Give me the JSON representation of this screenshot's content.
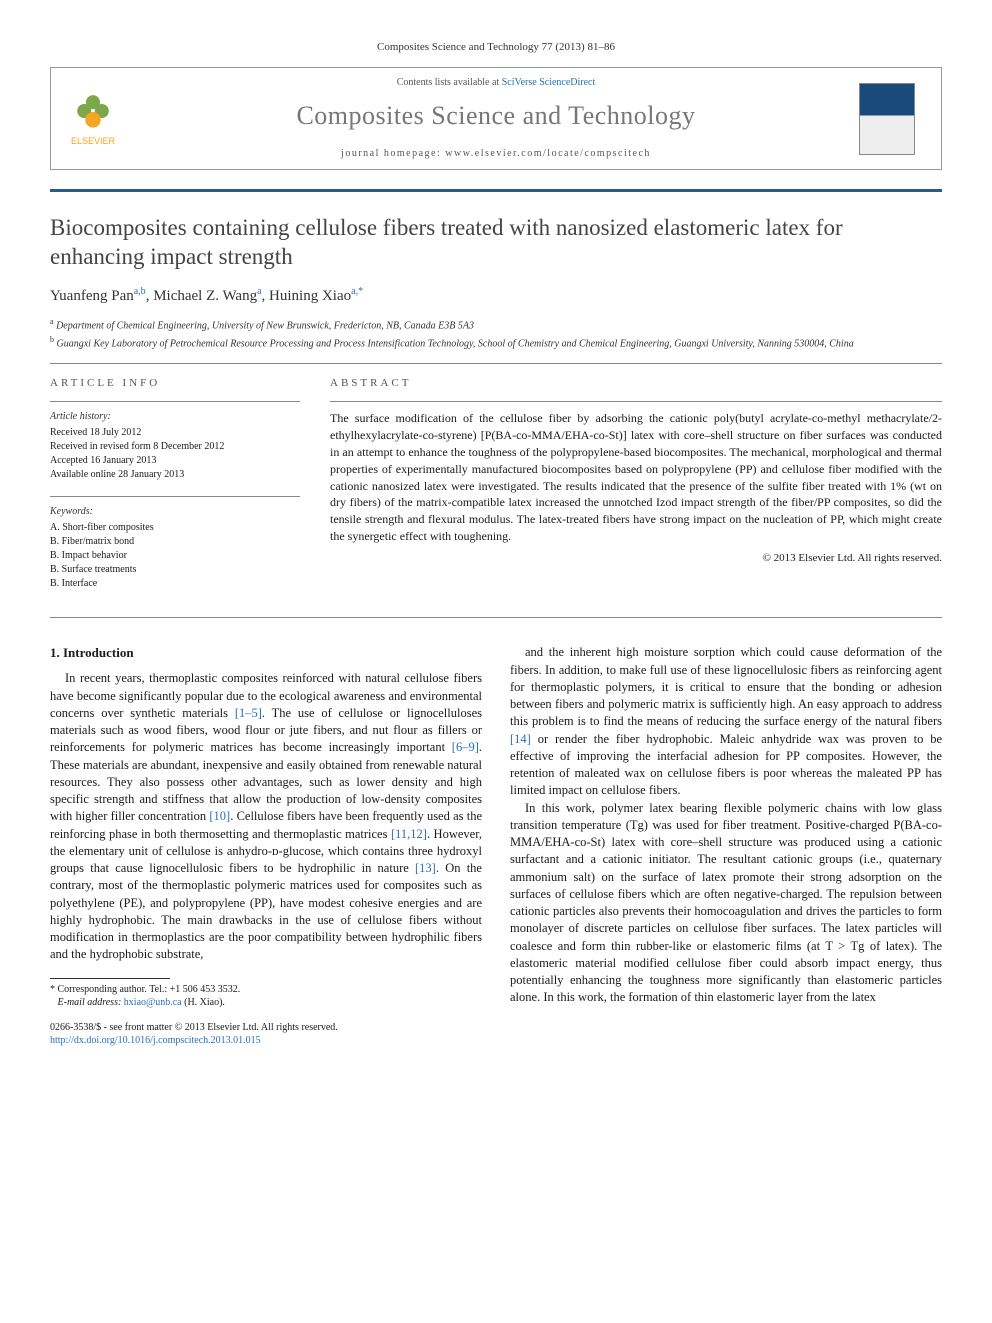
{
  "header": {
    "citation": "Composites Science and Technology 77 (2013) 81–86",
    "contents_prefix": "Contents lists available at ",
    "contents_link": "SciVerse ScienceDirect",
    "journal": "Composites Science and Technology",
    "homepage_prefix": "journal homepage: ",
    "homepage": "www.elsevier.com/locate/compscitech",
    "publisher": "ELSEVIER"
  },
  "article": {
    "title": "Biocomposites containing cellulose fibers treated with nanosized elastomeric latex for enhancing impact strength",
    "authors_html": "Yuanfeng Pan",
    "author1": "Yuanfeng Pan",
    "author1_sup": "a,b",
    "author2": "Michael Z. Wang",
    "author2_sup": "a",
    "author3": "Huining Xiao",
    "author3_sup": "a,",
    "author3_mark": "*",
    "affiliations": {
      "a": "Department of Chemical Engineering, University of New Brunswick, Fredericton, NB, Canada E3B 5A3",
      "b": "Guangxi Key Laboratory of Petrochemical Resource Processing and Process Intensification Technology, School of Chemistry and Chemical Engineering, Guangxi University, Nanning 530004, China"
    }
  },
  "info": {
    "head": "ARTICLE INFO",
    "history_label": "Article history:",
    "received": "Received 18 July 2012",
    "revised": "Received in revised form 8 December 2012",
    "accepted": "Accepted 16 January 2013",
    "online": "Available online 28 January 2013",
    "keywords_label": "Keywords:",
    "kw": [
      "A. Short-fiber composites",
      "B. Fiber/matrix bond",
      "B. Impact behavior",
      "B. Surface treatments",
      "B. Interface"
    ]
  },
  "abstract": {
    "head": "ABSTRACT",
    "text": "The surface modification of the cellulose fiber by adsorbing the cationic poly(butyl acrylate-co-methyl methacrylate/2-ethylhexylacrylate-co-styrene) [P(BA-co-MMA/EHA-co-St)] latex with core–shell structure on fiber surfaces was conducted in an attempt to enhance the toughness of the polypropylene-based biocomposites. The mechanical, morphological and thermal properties of experimentally manufactured biocomposites based on polypropylene (PP) and cellulose fiber modified with the cationic nanosized latex were investigated. The results indicated that the presence of the sulfite fiber treated with 1% (wt on dry fibers) of the matrix-compatible latex increased the unnotched Izod impact strength of the fiber/PP composites, so did the tensile strength and flexural modulus. The latex-treated fibers have strong impact on the nucleation of PP, which might create the synergetic effect with toughening.",
    "copyright": "© 2013 Elsevier Ltd. All rights reserved."
  },
  "body": {
    "sec1": "1. Introduction",
    "p1": "In recent years, thermoplastic composites reinforced with natural cellulose fibers have become significantly popular due to the ecological awareness and environmental concerns over synthetic materials [1–5]. The use of cellulose or lignocelluloses materials such as wood fibers, wood flour or jute fibers, and nut flour as fillers or reinforcements for polymeric matrices has become increasingly important [6–9]. These materials are abundant, inexpensive and easily obtained from renewable natural resources. They also possess other advantages, such as lower density and high specific strength and stiffness that allow the production of low-density composites with higher filler concentration [10]. Cellulose fibers have been frequently used as the reinforcing phase in both thermosetting and thermoplastic matrices [11,12]. However, the elementary unit of cellulose is anhydro-ᴅ-glucose, which contains three hydroxyl groups that cause lignocellulosic fibers to be hydrophilic in nature [13]. On the contrary, most of the thermoplastic polymeric matrices used for composites such as polyethylene (PE), and polypropylene (PP), have modest cohesive energies and are highly hydrophobic. The main drawbacks in the use of cellulose fibers without modification in thermoplastics are the poor compatibility between hydrophilic fibers and the hydrophobic substrate,",
    "p2": "and the inherent high moisture sorption which could cause deformation of the fibers. In addition, to make full use of these lignocellulosic fibers as reinforcing agent for thermoplastic polymers, it is critical to ensure that the bonding or adhesion between fibers and polymeric matrix is sufficiently high. An easy approach to address this problem is to find the means of reducing the surface energy of the natural fibers [14] or render the fiber hydrophobic. Maleic anhydride wax was proven to be effective of improving the interfacial adhesion for PP composites. However, the retention of maleated wax on cellulose fibers is poor whereas the maleated PP has limited impact on cellulose fibers.",
    "p3": "In this work, polymer latex bearing flexible polymeric chains with low glass transition temperature (Tg) was used for fiber treatment. Positive-charged P(BA-co-MMA/EHA-co-St) latex with core–shell structure was produced using a cationic surfactant and a cationic initiator. The resultant cationic groups (i.e., quaternary ammonium salt) on the surface of latex promote their strong adsorption on the surfaces of cellulose fibers which are often negative-charged. The repulsion between cationic particles also prevents their homocoagulation and drives the particles to form monolayer of discrete particles on cellulose fiber surfaces. The latex particles will coalesce and form thin rubber-like or elastomeric films (at T > Tg of latex). The elastomeric material modified cellulose fiber could absorb impact energy, thus potentially enhancing the toughness more significantly than elastomeric particles alone. In this work, the formation of thin elastomeric layer from the latex"
  },
  "footnote": {
    "mark": "*",
    "corr": " Corresponding author. Tel.: +1 506 453 3532.",
    "email_label": "E-mail address: ",
    "email": "hxiao@unb.ca",
    "email_name": " (H. Xiao)."
  },
  "footer": {
    "issn": "0266-3538/$ - see front matter © 2013 Elsevier Ltd. All rights reserved.",
    "doi": "http://dx.doi.org/10.1016/j.compscitech.2013.01.015"
  }
}
